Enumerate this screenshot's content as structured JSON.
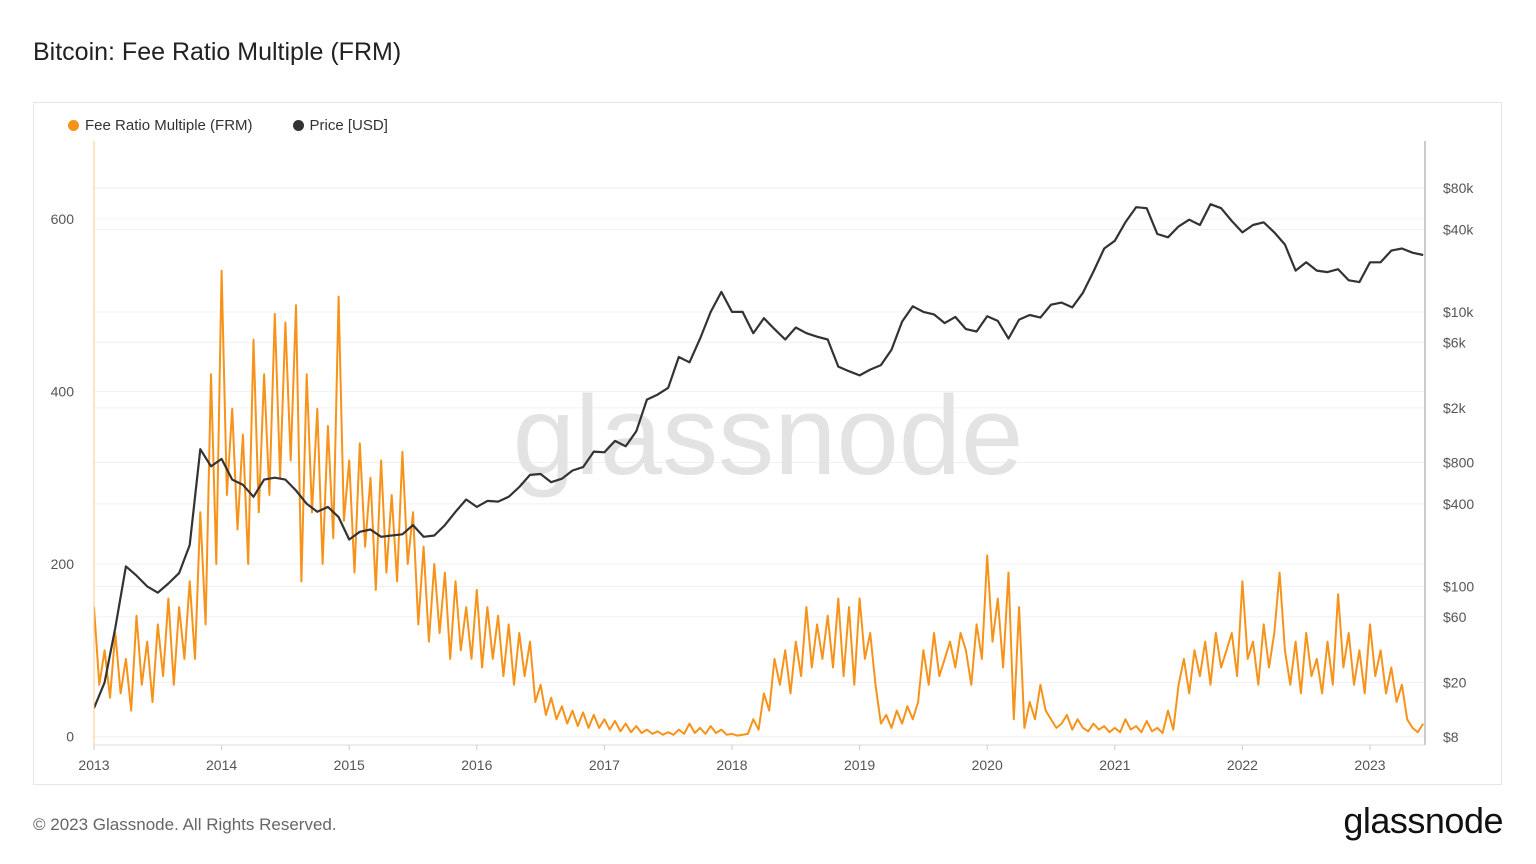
{
  "title": "Bitcoin: Fee Ratio Multiple (FRM)",
  "footer": "© 2023 Glassnode. All Rights Reserved.",
  "logo": "glassnode",
  "watermark": "glassnode",
  "chart_data": {
    "type": "line",
    "title": "Bitcoin: Fee Ratio Multiple (FRM)",
    "legend_position": "top-left",
    "grid": true,
    "x_ticks": [
      "2013",
      "2014",
      "2015",
      "2016",
      "2017",
      "2018",
      "2019",
      "2020",
      "2021",
      "2022",
      "2023"
    ],
    "left_axis": {
      "scale": "linear",
      "ylim": [
        0,
        690
      ],
      "ticks": [
        {
          "v": 0,
          "label": "0"
        },
        {
          "v": 200,
          "label": "200"
        },
        {
          "v": 400,
          "label": "400"
        },
        {
          "v": 600,
          "label": "600"
        }
      ]
    },
    "right_axis": {
      "scale": "log",
      "ylim": [
        8,
        176000
      ],
      "ticks": [
        {
          "v": 8,
          "label": "$8"
        },
        {
          "v": 20,
          "label": "$20"
        },
        {
          "v": 60,
          "label": "$60"
        },
        {
          "v": 100,
          "label": "$100"
        },
        {
          "v": 400,
          "label": "$400"
        },
        {
          "v": 800,
          "label": "$800"
        },
        {
          "v": 2000,
          "label": "$2k"
        },
        {
          "v": 6000,
          "label": "$6k"
        },
        {
          "v": 10000,
          "label": "$10k"
        },
        {
          "v": 40000,
          "label": "$40k"
        },
        {
          "v": 80000,
          "label": "$80k"
        }
      ]
    },
    "series": [
      {
        "name": "Fee Ratio Multiple (FRM)",
        "color": "#f7931a",
        "axis": "left",
        "sampling": "semi-monthly",
        "values_by_year": {
          "2013": [
            150,
            60,
            100,
            45,
            120,
            50,
            90,
            30,
            140,
            60,
            110,
            40,
            130,
            70,
            160,
            60,
            150,
            90,
            180,
            90,
            260,
            130,
            420,
            200
          ],
          "2014": [
            540,
            280,
            380,
            240,
            350,
            200,
            460,
            260,
            420,
            280,
            490,
            300,
            480,
            320,
            500,
            180,
            420,
            260,
            380,
            200,
            360,
            230,
            510,
            250
          ],
          "2015": [
            320,
            190,
            340,
            220,
            300,
            170,
            320,
            190,
            280,
            180,
            330,
            200,
            260,
            130,
            220,
            110,
            200,
            120,
            190,
            90,
            180,
            100,
            150,
            90
          ],
          "2016": [
            170,
            80,
            150,
            90,
            140,
            70,
            130,
            60,
            120,
            70,
            110,
            40,
            60,
            25,
            45,
            20,
            35,
            15,
            30,
            12,
            28,
            10,
            25,
            10
          ],
          "2017": [
            20,
            8,
            18,
            6,
            15,
            5,
            12,
            4,
            8,
            3,
            6,
            2,
            5,
            2,
            8,
            3,
            15,
            4,
            10,
            3,
            12,
            4,
            8,
            2
          ],
          "2018": [
            3,
            1,
            2,
            3,
            20,
            8,
            50,
            30,
            90,
            60,
            100,
            50,
            110,
            70,
            150,
            80,
            130,
            90,
            140,
            80,
            160,
            70,
            150,
            60
          ],
          "2019": [
            160,
            90,
            120,
            60,
            15,
            25,
            10,
            30,
            15,
            35,
            20,
            40,
            100,
            60,
            120,
            70,
            90,
            110,
            80,
            120,
            100,
            60,
            130,
            90
          ],
          "2020": [
            210,
            110,
            160,
            80,
            190,
            20,
            150,
            10,
            40,
            20,
            60,
            30,
            20,
            10,
            15,
            25,
            8,
            20,
            10,
            6,
            15,
            8,
            12,
            5
          ],
          "2021": [
            10,
            5,
            20,
            8,
            12,
            5,
            18,
            6,
            10,
            4,
            30,
            8,
            60,
            90,
            50,
            100,
            70,
            110,
            60,
            120,
            80,
            100,
            120,
            70
          ],
          "2022": [
            180,
            90,
            110,
            60,
            130,
            80,
            120,
            190,
            100,
            60,
            110,
            50,
            120,
            70,
            90,
            50,
            110,
            60,
            165,
            80,
            120,
            60,
            100,
            50
          ],
          "2023": [
            130,
            70,
            100,
            50,
            80,
            40,
            60,
            20,
            10,
            5,
            15
          ]
        }
      },
      {
        "name": "Price [USD]",
        "color": "#333333",
        "axis": "right",
        "sampling": "monthly",
        "values_by_year": {
          "2013": [
            13,
            20,
            50,
            140,
            120,
            100,
            90,
            105,
            125,
            200,
            1000,
            750
          ],
          "2014": [
            850,
            600,
            550,
            450,
            600,
            620,
            600,
            500,
            400,
            350,
            380,
            320
          ],
          "2015": [
            220,
            250,
            260,
            230,
            235,
            240,
            280,
            230,
            235,
            280,
            350,
            430
          ],
          "2016": [
            380,
            420,
            415,
            450,
            530,
            650,
            660,
            575,
            610,
            700,
            740,
            960
          ],
          "2017": [
            950,
            1150,
            1050,
            1350,
            2300,
            2500,
            2800,
            4700,
            4300,
            6400,
            10000,
            14000
          ],
          "2018": [
            10000,
            10000,
            7000,
            9000,
            7500,
            6300,
            7700,
            7000,
            6600,
            6300,
            4000,
            3700
          ],
          "2019": [
            3450,
            3800,
            4100,
            5300,
            8500,
            11000,
            10000,
            9600,
            8300,
            9200,
            7500,
            7200
          ],
          "2020": [
            9300,
            8600,
            6400,
            8800,
            9500,
            9100,
            11300,
            11700,
            10800,
            13800,
            19700,
            29000
          ],
          "2021": [
            33000,
            45000,
            58000,
            57000,
            37000,
            35000,
            42000,
            47000,
            43000,
            61000,
            57000,
            46000
          ],
          "2022": [
            38000,
            43000,
            45000,
            38000,
            31000,
            20000,
            23000,
            20000,
            19500,
            20500,
            17000,
            16500
          ],
          "2023": [
            23000,
            23000,
            28000,
            29000,
            27000,
            26000
          ]
        }
      }
    ]
  }
}
